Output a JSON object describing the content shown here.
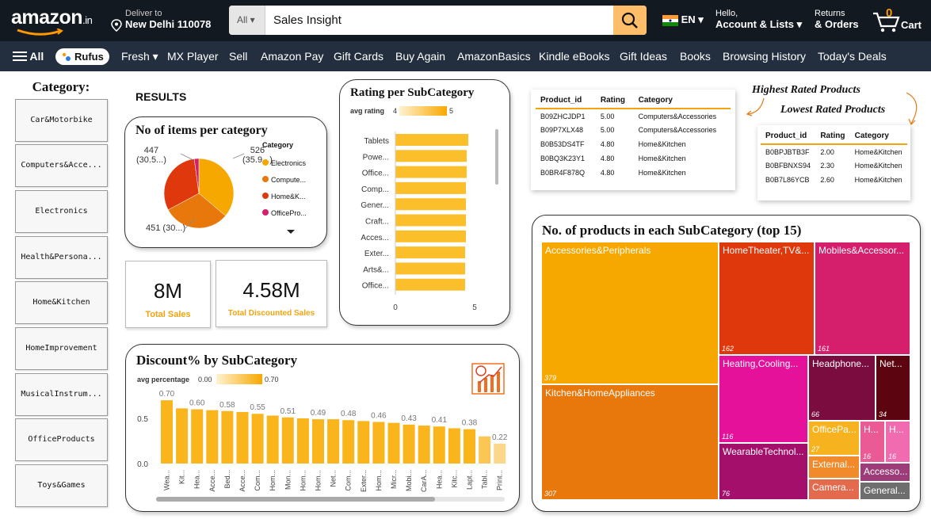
{
  "header": {
    "logo_text": "amazon",
    "logo_suffix": ".in",
    "deliver_label": "Deliver to",
    "deliver_location": "New Delhi 110078",
    "search_category": "All",
    "search_value": "Sales Insight",
    "language": "EN",
    "hello_label": "Hello,",
    "account_label": "Account & Lists",
    "returns_label": "Returns",
    "orders_label": "& Orders",
    "cart_count": "0",
    "cart_label": "Cart"
  },
  "nav": {
    "all_label": "All",
    "rufus_label": "Rufus",
    "items": [
      "Fresh",
      "MX Player",
      "Sell",
      "Amazon Pay",
      "Gift Cards",
      "Buy Again",
      "AmazonBasics",
      "Kindle eBooks",
      "Gift Ideas",
      "Books",
      "Browsing History",
      "Today's Deals"
    ]
  },
  "sidebar": {
    "title": "Category:",
    "items": [
      "Car&Motorbike",
      "Computers&Acce...",
      "Electronics",
      "Health&Persona...",
      "Home&Kitchen",
      "HomeImprovement",
      "MusicalInstrum...",
      "OfficeProducts",
      "Toys&Games"
    ]
  },
  "results_label": "RESULTS",
  "items_per_category": {
    "title": "No of items per category",
    "legend_title": "Category",
    "legend": [
      {
        "label": "Electronics",
        "color": "#f7a800"
      },
      {
        "label": "Compute...",
        "color": "#e8770c"
      },
      {
        "label": "Home&K...",
        "color": "#e0380d"
      },
      {
        "label": "OfficePro...",
        "color": "#d61f6c"
      }
    ],
    "labels": {
      "a": "526",
      "a2": "(35.9...)",
      "b": "447",
      "b2": "(30.5...)",
      "c": "451 (30...)"
    }
  },
  "kpis": [
    {
      "value": "8M",
      "label": "Total Sales"
    },
    {
      "value": "4.58M",
      "label": "Total Discounted Sales"
    }
  ],
  "rating_card": {
    "title": "Rating per SubCategory",
    "legend_label": "avg rating",
    "legend_min": "4",
    "legend_max": "5",
    "axis_min": "0",
    "axis_max": "5"
  },
  "discount_card": {
    "title": "Discount% by SubCategory",
    "legend_label": "avg percentage",
    "legend_min": "0.00",
    "legend_max": "0.70",
    "yticks": [
      "0.0",
      "0.5"
    ]
  },
  "top_table": {
    "headers": [
      "Product_id",
      "Rating",
      "Category"
    ],
    "rows": [
      [
        "B09ZHCJDP1",
        "5.00",
        "Computers&Accessories"
      ],
      [
        "B09P7XLX48",
        "5.00",
        "Computers&Accessories"
      ],
      [
        "B0B53DS4TF",
        "4.80",
        "Home&Kitchen"
      ],
      [
        "B0BQ3K23Y1",
        "4.80",
        "Home&Kitchen"
      ],
      [
        "B0BR4F878Q",
        "4.80",
        "Home&Kitchen"
      ]
    ]
  },
  "bottom_table": {
    "headers": [
      "Product_id",
      "Rating",
      "Category"
    ],
    "rows": [
      [
        "B0BPJBTB3F",
        "2.00",
        "Home&Kitchen"
      ],
      [
        "B0BFBNXS94",
        "2.30",
        "Home&Kitchen"
      ],
      [
        "B0B7L86YCB",
        "2.60",
        "Home&Kitchen"
      ]
    ]
  },
  "highest_label": "Highest Rated Products",
  "lowest_label": "Lowest Rated Products",
  "treemap": {
    "title": "No. of products in each SubCategory (top 15)",
    "cells": [
      {
        "label": "Accessories&Peripherals",
        "value": "379",
        "color": "#f7a800"
      },
      {
        "label": "Kitchen&HomeAppliances",
        "value": "307",
        "color": "#e8770c"
      },
      {
        "label": "HomeTheater,TV&...",
        "value": "162",
        "color": "#e0380d"
      },
      {
        "label": "Mobiles&Accessor...",
        "value": "161",
        "color": "#d61f6c"
      },
      {
        "label": "Heating,Cooling...",
        "value": "116",
        "color": "#e6119b"
      },
      {
        "label": "WearableTechnol...",
        "value": "76",
        "color": "#a30f6a"
      },
      {
        "label": "Headphone...",
        "value": "66",
        "color": "#7a0c3f"
      },
      {
        "label": "Net...",
        "value": "34",
        "color": "#5c0510"
      },
      {
        "label": "OfficePa...",
        "value": "27",
        "color": "#f7b21f"
      },
      {
        "label": "H...",
        "value": "16",
        "color": "#ea5a95"
      },
      {
        "label": "H...",
        "value": "16",
        "color": "#f06bb0"
      },
      {
        "label": "External...",
        "value": "",
        "color": "#f08a2a"
      },
      {
        "label": "Accesso...",
        "value": "",
        "color": "#9c3c78"
      },
      {
        "label": "Camera...",
        "value": "",
        "color": "#e46a4e"
      },
      {
        "label": "General...",
        "value": "",
        "color": "#6e6e6e"
      }
    ]
  },
  "chart_data": [
    {
      "type": "pie",
      "title": "No of items per category",
      "categories": [
        "Electronics",
        "Computers&Accessories",
        "Home&Kitchen",
        "OfficeProducts"
      ],
      "values": [
        526,
        451,
        447,
        31
      ]
    },
    {
      "type": "bar",
      "title": "Rating per SubCategory",
      "orientation": "horizontal",
      "categories": [
        "Tablets",
        "Powe...",
        "Office...",
        "Comp...",
        "Gener...",
        "Craft...",
        "Acces...",
        "Exter...",
        "Arts&...",
        "Office..."
      ],
      "values": [
        4.6,
        4.5,
        4.5,
        4.45,
        4.45,
        4.45,
        4.45,
        4.4,
        4.4,
        4.4
      ],
      "xlim": [
        0,
        5
      ]
    },
    {
      "type": "bar",
      "title": "Discount% by SubCategory",
      "categories": [
        "Wea...",
        "Kit...",
        "Hea...",
        "Acce...",
        "Bed...",
        "Acce...",
        "Com...",
        "Hom...",
        "Mon...",
        "Hom...",
        "Hom...",
        "Net...",
        "Com...",
        "Exter...",
        "Hom...",
        "Micr...",
        "Mobi...",
        "CarA...",
        "Hea...",
        "Kitc...",
        "Lapt...",
        "Tabl...",
        "Print..."
      ],
      "values": [
        0.7,
        0.61,
        0.6,
        0.59,
        0.58,
        0.57,
        0.55,
        0.53,
        0.51,
        0.5,
        0.49,
        0.49,
        0.48,
        0.47,
        0.46,
        0.45,
        0.43,
        0.42,
        0.41,
        0.39,
        0.38,
        0.3,
        0.22
      ],
      "data_labels": [
        "0.70",
        "",
        "0.60",
        "",
        "0.58",
        "",
        "0.55",
        "",
        "0.51",
        "",
        "0.49",
        "",
        "0.48",
        "",
        "0.46",
        "",
        "0.43",
        "",
        "0.41",
        "",
        "0.38",
        "",
        "0.22"
      ],
      "ylim": [
        0,
        0.75
      ]
    }
  ]
}
